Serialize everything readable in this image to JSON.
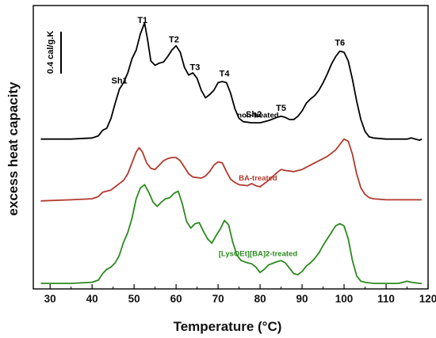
{
  "chart_data": {
    "type": "line",
    "title": "",
    "xlabel": "Temperature (°C)",
    "ylabel": "excess heat capacity",
    "xlim": [
      26,
      120
    ],
    "xticks": [
      30,
      40,
      50,
      60,
      70,
      80,
      90,
      100,
      110,
      120
    ],
    "y_axis_ticks": false,
    "grid": false,
    "scale_bar": {
      "label": "0.4 cal/g.K",
      "value": 0.4,
      "unit": "cal/g.K"
    },
    "peak_labels": [
      {
        "text": "Sh1",
        "x": 46.5
      },
      {
        "text": "T1",
        "x": 52
      },
      {
        "text": "T2",
        "x": 59.5
      },
      {
        "text": "T3",
        "x": 64.5
      },
      {
        "text": "T4",
        "x": 71.5
      },
      {
        "text": "Sh2",
        "x": 78.5
      },
      {
        "text": "T5",
        "x": 85
      },
      {
        "text": "T6",
        "x": 99
      }
    ],
    "series": [
      {
        "name": "non-treated",
        "color": "#000000",
        "baseline": 0.0,
        "points": [
          [
            27.8,
            0.0
          ],
          [
            35,
            0.0
          ],
          [
            40,
            0.01
          ],
          [
            41.5,
            0.03
          ],
          [
            42.5,
            0.08
          ],
          [
            43.5,
            0.1
          ],
          [
            44.5,
            0.19
          ],
          [
            45.5,
            0.33
          ],
          [
            46.5,
            0.46
          ],
          [
            47.5,
            0.52
          ],
          [
            48.5,
            0.61
          ],
          [
            49.5,
            0.74
          ],
          [
            50.5,
            0.82
          ],
          [
            51.5,
            0.97
          ],
          [
            52.5,
            1.07
          ],
          [
            53.2,
            0.92
          ],
          [
            54,
            0.72
          ],
          [
            55,
            0.68
          ],
          [
            56,
            0.7
          ],
          [
            57,
            0.71
          ],
          [
            58,
            0.76
          ],
          [
            59,
            0.82
          ],
          [
            60,
            0.86
          ],
          [
            61,
            0.8
          ],
          [
            62,
            0.66
          ],
          [
            63,
            0.59
          ],
          [
            64,
            0.61
          ],
          [
            65,
            0.56
          ],
          [
            66,
            0.45
          ],
          [
            67,
            0.38
          ],
          [
            68,
            0.41
          ],
          [
            69,
            0.45
          ],
          [
            70,
            0.52
          ],
          [
            71,
            0.53
          ],
          [
            72,
            0.52
          ],
          [
            73,
            0.42
          ],
          [
            74,
            0.28
          ],
          [
            75,
            0.19
          ],
          [
            76,
            0.16
          ],
          [
            78,
            0.15
          ],
          [
            80,
            0.15
          ],
          [
            81,
            0.16
          ],
          [
            82,
            0.17
          ],
          [
            84,
            0.2
          ],
          [
            85,
            0.21
          ],
          [
            86,
            0.2
          ],
          [
            87,
            0.18
          ],
          [
            88,
            0.18
          ],
          [
            89,
            0.21
          ],
          [
            90,
            0.26
          ],
          [
            91,
            0.33
          ],
          [
            92,
            0.37
          ],
          [
            93,
            0.4
          ],
          [
            94,
            0.45
          ],
          [
            95,
            0.52
          ],
          [
            96,
            0.6
          ],
          [
            97,
            0.69
          ],
          [
            98,
            0.76
          ],
          [
            99,
            0.81
          ],
          [
            100,
            0.8
          ],
          [
            101,
            0.72
          ],
          [
            102,
            0.55
          ],
          [
            103,
            0.35
          ],
          [
            104,
            0.18
          ],
          [
            105,
            0.07
          ],
          [
            106,
            0.02
          ],
          [
            107,
            0.01
          ],
          [
            110,
            0.0
          ],
          [
            112,
            0.0
          ],
          [
            115,
            0.0
          ],
          [
            116,
            0.01
          ],
          [
            117,
            0.0
          ],
          [
            118,
            -0.01
          ],
          [
            118.5,
            0.0
          ]
        ]
      },
      {
        "name": "BA-treated",
        "color": "#b03a2e",
        "baseline": -0.57,
        "points": [
          [
            27.8,
            -0.57
          ],
          [
            35,
            -0.56
          ],
          [
            40,
            -0.55
          ],
          [
            41.5,
            -0.53
          ],
          [
            42.5,
            -0.49
          ],
          [
            43.5,
            -0.48
          ],
          [
            44.5,
            -0.47
          ],
          [
            45.5,
            -0.44
          ],
          [
            46.5,
            -0.41
          ],
          [
            47.5,
            -0.38
          ],
          [
            48.5,
            -0.32
          ],
          [
            49.5,
            -0.22
          ],
          [
            50.5,
            -0.12
          ],
          [
            51.2,
            -0.08
          ],
          [
            52,
            -0.12
          ],
          [
            53,
            -0.22
          ],
          [
            54,
            -0.27
          ],
          [
            55,
            -0.28
          ],
          [
            56,
            -0.24
          ],
          [
            57,
            -0.2
          ],
          [
            58,
            -0.18
          ],
          [
            59,
            -0.17
          ],
          [
            60,
            -0.17
          ],
          [
            61,
            -0.2
          ],
          [
            62,
            -0.26
          ],
          [
            63,
            -0.32
          ],
          [
            64,
            -0.35
          ],
          [
            66,
            -0.36
          ],
          [
            67,
            -0.34
          ],
          [
            68,
            -0.3
          ],
          [
            69,
            -0.24
          ],
          [
            70,
            -0.21
          ],
          [
            71,
            -0.22
          ],
          [
            72,
            -0.3
          ],
          [
            73,
            -0.37
          ],
          [
            74,
            -0.4
          ],
          [
            75,
            -0.42
          ],
          [
            77,
            -0.43
          ],
          [
            78,
            -0.41
          ],
          [
            79,
            -0.43
          ],
          [
            80,
            -0.44
          ],
          [
            82,
            -0.38
          ],
          [
            84,
            -0.31
          ],
          [
            85,
            -0.28
          ],
          [
            86,
            -0.29
          ],
          [
            88,
            -0.3
          ],
          [
            90,
            -0.28
          ],
          [
            92,
            -0.24
          ],
          [
            94,
            -0.2
          ],
          [
            96,
            -0.16
          ],
          [
            98,
            -0.1
          ],
          [
            99,
            -0.05
          ],
          [
            100,
            0.0
          ],
          [
            101,
            -0.02
          ],
          [
            102,
            -0.14
          ],
          [
            103,
            -0.32
          ],
          [
            104,
            -0.45
          ],
          [
            105,
            -0.51
          ],
          [
            106,
            -0.54
          ],
          [
            107,
            -0.55
          ],
          [
            110,
            -0.56
          ],
          [
            115,
            -0.56
          ],
          [
            118.5,
            -0.56
          ]
        ]
      },
      {
        "name": "[LysOEt][BA]2-treated",
        "color": "#2b8a1e",
        "baseline": -1.33,
        "points": [
          [
            27.8,
            -1.33
          ],
          [
            35,
            -1.33
          ],
          [
            40,
            -1.32
          ],
          [
            41.5,
            -1.3
          ],
          [
            42.5,
            -1.24
          ],
          [
            43.5,
            -1.2
          ],
          [
            44.5,
            -1.18
          ],
          [
            45.5,
            -1.14
          ],
          [
            46.5,
            -1.07
          ],
          [
            47.5,
            -0.95
          ],
          [
            48.5,
            -0.86
          ],
          [
            49.5,
            -0.73
          ],
          [
            50.5,
            -0.55
          ],
          [
            51.5,
            -0.45
          ],
          [
            52.5,
            -0.42
          ],
          [
            53.5,
            -0.49
          ],
          [
            54.5,
            -0.58
          ],
          [
            55.5,
            -0.62
          ],
          [
            56.5,
            -0.58
          ],
          [
            57.5,
            -0.55
          ],
          [
            58.5,
            -0.54
          ],
          [
            59.5,
            -0.5
          ],
          [
            60.5,
            -0.48
          ],
          [
            61.5,
            -0.6
          ],
          [
            62.5,
            -0.76
          ],
          [
            63.5,
            -0.82
          ],
          [
            64.5,
            -0.78
          ],
          [
            65.5,
            -0.77
          ],
          [
            66.5,
            -0.85
          ],
          [
            67.5,
            -0.92
          ],
          [
            68.5,
            -0.96
          ],
          [
            69.5,
            -0.89
          ],
          [
            70.5,
            -0.83
          ],
          [
            71.5,
            -0.75
          ],
          [
            72.5,
            -0.79
          ],
          [
            73.5,
            -0.95
          ],
          [
            74.5,
            -1.07
          ],
          [
            75.5,
            -1.12
          ],
          [
            77,
            -1.14
          ],
          [
            78,
            -1.15
          ],
          [
            79,
            -1.18
          ],
          [
            80,
            -1.23
          ],
          [
            81,
            -1.2
          ],
          [
            82,
            -1.16
          ],
          [
            84,
            -1.13
          ],
          [
            85,
            -1.12
          ],
          [
            86,
            -1.14
          ],
          [
            87,
            -1.19
          ],
          [
            88,
            -1.24
          ],
          [
            89,
            -1.25
          ],
          [
            90,
            -1.22
          ],
          [
            91,
            -1.17
          ],
          [
            92,
            -1.14
          ],
          [
            93,
            -1.1
          ],
          [
            94,
            -1.05
          ],
          [
            95,
            -0.98
          ],
          [
            96,
            -0.92
          ],
          [
            97,
            -0.86
          ],
          [
            98,
            -0.8
          ],
          [
            99,
            -0.78
          ],
          [
            100,
            -0.8
          ],
          [
            101,
            -0.92
          ],
          [
            102,
            -1.12
          ],
          [
            103,
            -1.26
          ],
          [
            104,
            -1.31
          ],
          [
            105,
            -1.32
          ],
          [
            107,
            -1.33
          ],
          [
            110,
            -1.33
          ],
          [
            113,
            -1.33
          ],
          [
            114,
            -1.32
          ],
          [
            115,
            -1.31
          ],
          [
            116,
            -1.32
          ],
          [
            118,
            -1.33
          ],
          [
            118.5,
            -1.33
          ]
        ]
      }
    ],
    "series_labels": [
      {
        "series": 0,
        "text": "non-treated",
        "x": 79.5,
        "y": 0.2
      },
      {
        "series": 1,
        "text": "BA-treated",
        "x": 79.5,
        "y": -0.38
      },
      {
        "series": 2,
        "text": "[LysOEt][BA]2-treated",
        "x": 79.5,
        "y": -1.08
      }
    ]
  }
}
